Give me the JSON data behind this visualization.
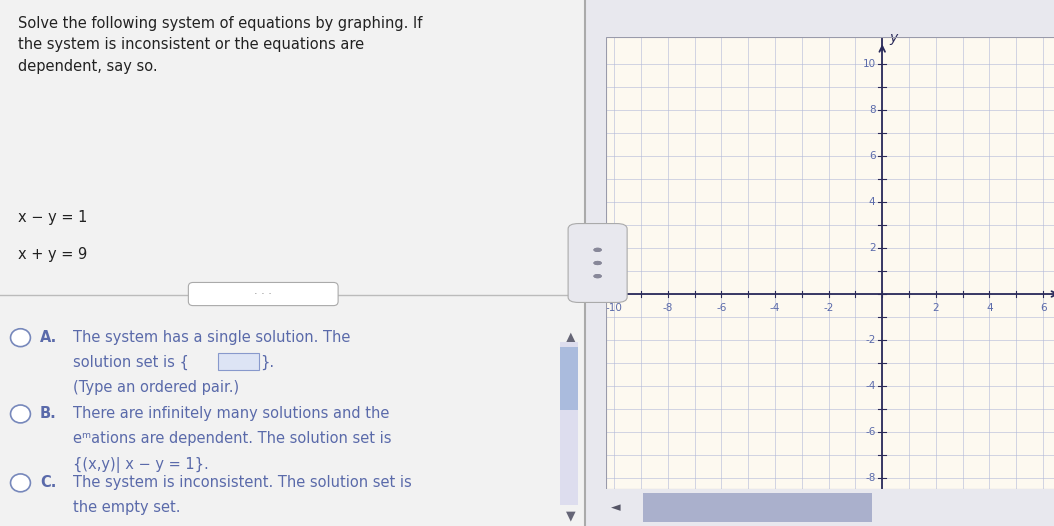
{
  "title_text": "Solve the following system of equations by graphing. If\nthe system is inconsistent or the equations are\ndependent, say so.",
  "graph_bg": "#fdf9f0",
  "grid_color": "#b0b8d8",
  "axis_color": "#2a2a5a",
  "text_color": "#5a6aaa",
  "tick_color": "#5a6aaa",
  "left_bg": "#f2f2f2",
  "right_bg": "#e8e8ee",
  "xmin": -10,
  "xmax": 6,
  "ymin": -8,
  "ymax": 10,
  "xticks": [
    -10,
    -8,
    -6,
    -4,
    -2,
    2,
    4,
    6
  ],
  "yticks": [
    -8,
    -6,
    -4,
    -2,
    2,
    4,
    6,
    8,
    10
  ],
  "title_fontsize": 11,
  "body_fontsize": 10.5
}
